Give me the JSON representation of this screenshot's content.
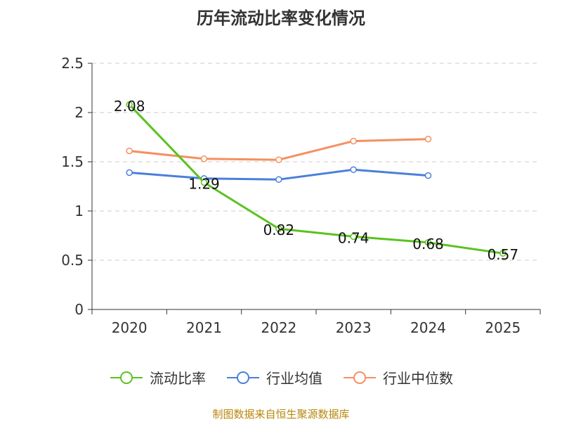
{
  "chart_data": {
    "type": "line",
    "title": "历年流动比率变化情况",
    "categories": [
      "2020",
      "2021",
      "2022",
      "2023",
      "2024",
      "2025"
    ],
    "ylim": [
      0,
      2.5
    ],
    "yticks": [
      "0",
      "0.5",
      "1",
      "1.5",
      "2",
      "2.5"
    ],
    "grid": true,
    "legend": "bottom",
    "series": [
      {
        "name": "流动比率",
        "color": "#5bc21f",
        "values": [
          2.08,
          1.29,
          0.82,
          0.74,
          0.68,
          0.57
        ],
        "labels": [
          "2.08",
          "1.29",
          "0.82",
          "0.74",
          "0.68",
          "0.57"
        ]
      },
      {
        "name": "行业均值",
        "color": "#4a7fdb",
        "values": [
          1.39,
          1.33,
          1.32,
          1.42,
          1.36,
          null
        ]
      },
      {
        "name": "行业中位数",
        "color": "#f58f5f",
        "values": [
          1.61,
          1.53,
          1.52,
          1.71,
          1.73,
          null
        ]
      }
    ]
  },
  "source": "制图数据来自恒生聚源数据库"
}
